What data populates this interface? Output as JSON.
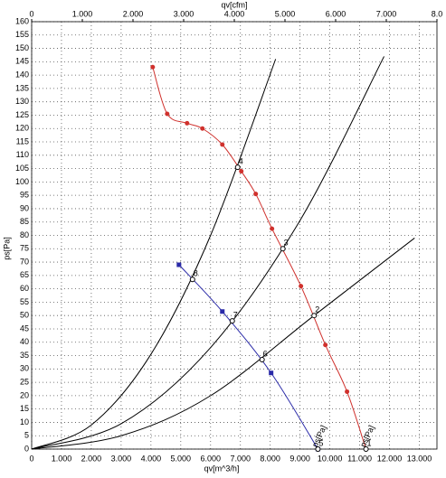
{
  "chart_data": {
    "type": "line",
    "x_label": "qv[m^3/h]",
    "x2_label": "qv[cfm]",
    "y_label": "ps[Pa]",
    "xlim": [
      0,
      13592
    ],
    "x2lim": [
      0,
      8000
    ],
    "ylim": [
      0,
      160
    ],
    "grid": true,
    "xticks": [
      0,
      {
        "value": 1000,
        "label": "1.000"
      },
      {
        "value": 2000,
        "label": "2.000"
      },
      {
        "value": 3000,
        "label": "3.000"
      },
      {
        "value": 4000,
        "label": "4.000"
      },
      {
        "value": 5000,
        "label": "5.000"
      },
      {
        "value": 6000,
        "label": "6.000"
      },
      {
        "value": 7000,
        "label": "7.000"
      },
      {
        "value": 8000,
        "label": "8.000"
      },
      {
        "value": 9000,
        "label": "9.000"
      },
      {
        "value": 10000,
        "label": "10.000"
      },
      {
        "value": 11000,
        "label": "11.000"
      },
      {
        "value": 12000,
        "label": "12.000"
      },
      {
        "value": 13000,
        "label": "13.000"
      }
    ],
    "x2ticks": [
      0,
      {
        "value": 1000,
        "label": "1.000"
      },
      {
        "value": 2000,
        "label": "2.000"
      },
      {
        "value": 3000,
        "label": "3.000"
      },
      {
        "value": 4000,
        "label": "4.000"
      },
      {
        "value": 5000,
        "label": "5.000"
      },
      {
        "value": 6000,
        "label": "6.000"
      },
      {
        "value": 7000,
        "label": "7.000"
      },
      {
        "value": 8000,
        "label": "8.0"
      }
    ],
    "yticks": [
      0,
      5,
      10,
      15,
      20,
      25,
      30,
      35,
      40,
      45,
      50,
      55,
      60,
      65,
      70,
      75,
      80,
      85,
      90,
      95,
      100,
      105,
      110,
      115,
      120,
      125,
      130,
      135,
      140,
      145,
      150,
      155,
      160
    ],
    "series": [
      {
        "name": "ps[Pa]",
        "color": "#d0312d",
        "x": [
          4060,
          4545,
          5212,
          5727,
          6394,
          7030,
          7515,
          8060,
          9030,
          9850,
          10576,
          11212
        ],
        "values": [
          143,
          125.5,
          122,
          120,
          114,
          104,
          95.5,
          82.5,
          61,
          39,
          21.5,
          0
        ]
      },
      {
        "name": "ps[Pa]",
        "color": "#2a2aa8",
        "x": [
          4940,
          6394,
          8030,
          9600
        ],
        "values": [
          69,
          51.5,
          28.5,
          0
        ]
      }
    ],
    "system_curves": [
      {
        "color": "#000000",
        "x": [
          0,
          2000,
          4000,
          6000,
          8182
        ],
        "values": [
          0,
          9,
          35.5,
          80,
          146
        ]
      },
      {
        "color": "#000000",
        "x": [
          0,
          3000,
          6000,
          9000,
          11818
        ],
        "values": [
          0,
          9.5,
          38,
          85.6,
          147
        ]
      },
      {
        "color": "#000000",
        "x": [
          0,
          3000,
          6000,
          9472,
          12842
        ],
        "values": [
          0,
          5,
          20,
          50,
          79
        ]
      }
    ],
    "points": [
      {
        "label": "1",
        "x": 11212,
        "y": 0
      },
      {
        "label": "2",
        "x": 9472,
        "y": 50
      },
      {
        "label": "3",
        "x": 8424,
        "y": 75
      },
      {
        "label": "4",
        "x": 6909,
        "y": 105.5
      },
      {
        "label": "5",
        "x": 9600,
        "y": 0
      },
      {
        "label": "6",
        "x": 7727,
        "y": 33.5
      },
      {
        "label": "7",
        "x": 6727,
        "y": 48
      },
      {
        "label": "8",
        "x": 5394,
        "y": 63.5
      }
    ]
  }
}
